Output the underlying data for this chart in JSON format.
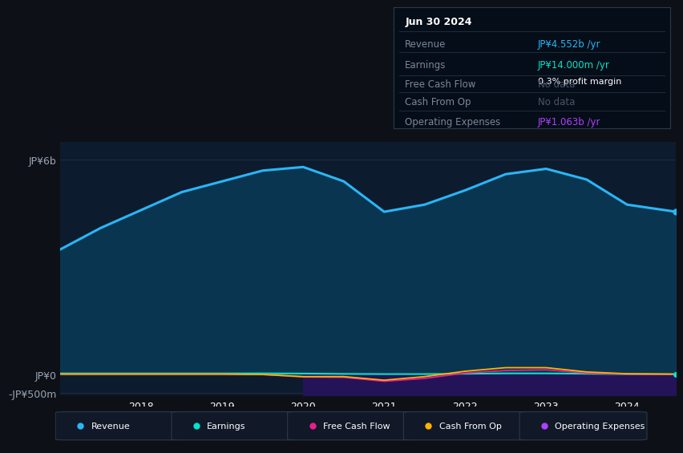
{
  "background_color": "#0d1117",
  "plot_bg_color": "#0d1b2e",
  "years": [
    2017.0,
    2017.5,
    2018.0,
    2018.5,
    2019.0,
    2019.5,
    2020.0,
    2020.5,
    2021.0,
    2021.5,
    2022.0,
    2022.5,
    2023.0,
    2023.5,
    2024.0,
    2024.6
  ],
  "revenue": [
    3.5,
    4.1,
    4.6,
    5.1,
    5.4,
    5.7,
    5.8,
    5.4,
    4.55,
    4.75,
    5.15,
    5.6,
    5.75,
    5.45,
    4.75,
    4.552
  ],
  "earnings": [
    0.04,
    0.04,
    0.04,
    0.04,
    0.04,
    0.04,
    0.035,
    0.025,
    0.02,
    0.02,
    0.03,
    0.04,
    0.04,
    0.03,
    0.02,
    0.014
  ],
  "cash_from_op": [
    0.02,
    0.02,
    0.02,
    0.02,
    0.02,
    0.01,
    -0.05,
    -0.05,
    -0.15,
    -0.05,
    0.1,
    0.2,
    0.2,
    0.08,
    0.03,
    0.02
  ],
  "free_cash_flow": [
    0.02,
    0.02,
    0.02,
    0.02,
    0.02,
    0.01,
    -0.06,
    -0.07,
    -0.18,
    -0.1,
    0.05,
    0.12,
    0.14,
    0.05,
    0.02,
    0.01
  ],
  "operating_expenses_x": [
    2020.0,
    2020.5,
    2021.0,
    2021.5,
    2022.0,
    2022.5,
    2023.0,
    2023.5,
    2024.0,
    2024.6
  ],
  "operating_expenses": [
    -1.0,
    -0.98,
    -0.96,
    -0.97,
    -0.98,
    -1.0,
    -1.02,
    -1.05,
    -1.06,
    -1.063
  ],
  "ylim": [
    -0.58,
    6.5
  ],
  "yticks": [
    -0.5,
    0.0,
    6.0
  ],
  "ytick_labels": [
    "-JP¥500m",
    "JP¥0",
    "JP¥6b"
  ],
  "xticks": [
    2018,
    2019,
    2020,
    2021,
    2022,
    2023,
    2024
  ],
  "revenue_color": "#29b6f6",
  "revenue_fill": "#0a3550",
  "earnings_color": "#00e5cc",
  "cash_from_op_color": "#ffb300",
  "free_cash_flow_color": "#e91e8c",
  "op_expenses_color": "#b040ff",
  "op_expenses_fill": "#25135a",
  "info_box_bg": "#050d18",
  "info_box_border": "#2a3a4a",
  "info_title": "Jun 30 2024",
  "info_rows": [
    {
      "label": "Revenue",
      "value": "JP¥4.552b /yr",
      "value_color": "#29b6f6",
      "sub": null
    },
    {
      "label": "Earnings",
      "value": "JP¥14.000m /yr",
      "value_color": "#00e5cc",
      "sub": "0.3% profit margin"
    },
    {
      "label": "Free Cash Flow",
      "value": "No data",
      "value_color": "#4a5568",
      "sub": null
    },
    {
      "label": "Cash From Op",
      "value": "No data",
      "value_color": "#4a5568",
      "sub": null
    },
    {
      "label": "Operating Expenses",
      "value": "JP¥1.063b /yr",
      "value_color": "#b040ff",
      "sub": null
    }
  ],
  "legend_items": [
    {
      "label": "Revenue",
      "color": "#29b6f6"
    },
    {
      "label": "Earnings",
      "color": "#00e5cc"
    },
    {
      "label": "Free Cash Flow",
      "color": "#e91e8c"
    },
    {
      "label": "Cash From Op",
      "color": "#ffb300"
    },
    {
      "label": "Operating Expenses",
      "color": "#b040ff"
    }
  ]
}
